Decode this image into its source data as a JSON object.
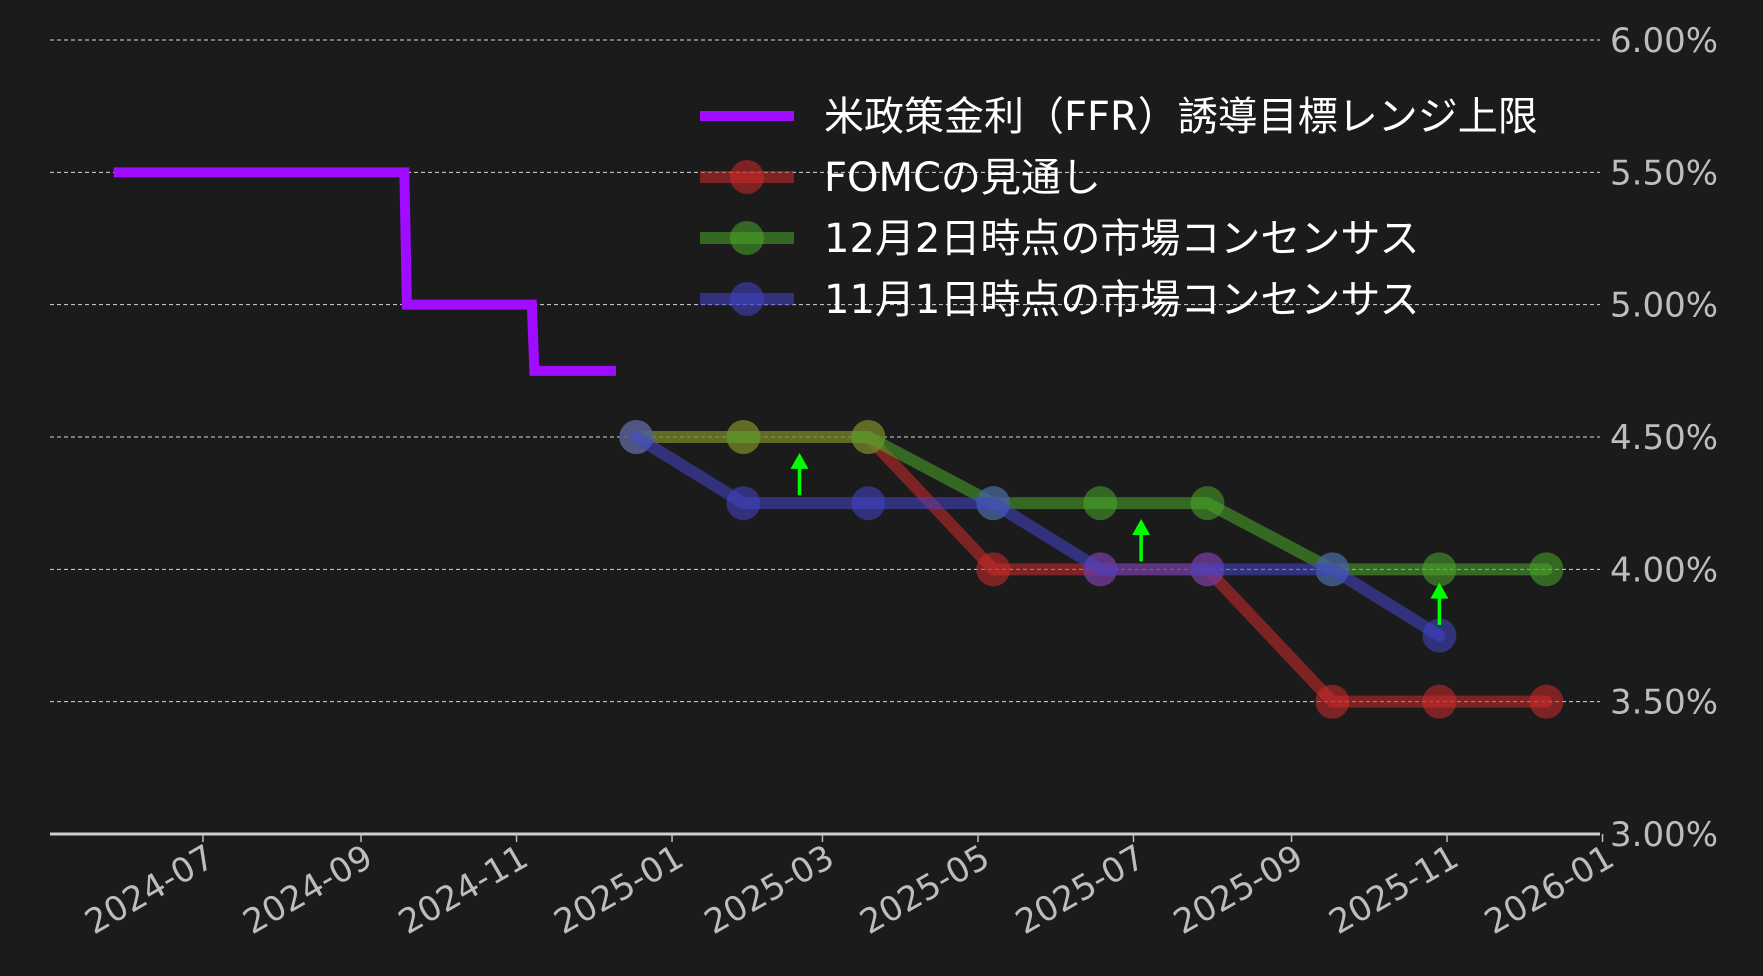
{
  "chart_data": {
    "type": "line",
    "title": "",
    "xlabel": "",
    "ylabel": "",
    "xlim": [
      "2024-05-02",
      "2025-12-31"
    ],
    "ylim": [
      3.0,
      6.0
    ],
    "grid": true,
    "legend_position": "top-right",
    "y_ticks": [
      {
        "value": 3.0,
        "label": "3.00%"
      },
      {
        "value": 3.5,
        "label": "3.50%"
      },
      {
        "value": 4.0,
        "label": "4.00%"
      },
      {
        "value": 4.5,
        "label": "4.50%"
      },
      {
        "value": 5.0,
        "label": "5.00%"
      },
      {
        "value": 5.5,
        "label": "5.50%"
      },
      {
        "value": 6.0,
        "label": "6.00%"
      }
    ],
    "x_ticks": [
      {
        "value": "2024-07-01",
        "label": "2024-07"
      },
      {
        "value": "2024-09-01",
        "label": "2024-09"
      },
      {
        "value": "2024-11-01",
        "label": "2024-11"
      },
      {
        "value": "2025-01-01",
        "label": "2025-01"
      },
      {
        "value": "2025-03-01",
        "label": "2025-03"
      },
      {
        "value": "2025-05-01",
        "label": "2025-05"
      },
      {
        "value": "2025-07-01",
        "label": "2025-07"
      },
      {
        "value": "2025-09-01",
        "label": "2025-09"
      },
      {
        "value": "2025-11-01",
        "label": "2025-11"
      },
      {
        "value": "2026-01-01",
        "label": "2026-01"
      }
    ],
    "series": [
      {
        "name": "米政策金利（FFR）誘導目標レンジ上限",
        "color": "#a00cff",
        "style": "step",
        "markers": false,
        "points": [
          {
            "x": "2024-05-27",
            "y": 5.5
          },
          {
            "x": "2024-09-18",
            "y": 5.5
          },
          {
            "x": "2024-09-19",
            "y": 5.0
          },
          {
            "x": "2024-11-07",
            "y": 5.0
          },
          {
            "x": "2024-11-08",
            "y": 4.75
          },
          {
            "x": "2024-12-10",
            "y": 4.75
          }
        ]
      },
      {
        "name": "FOMCの見通し",
        "color": "#d02a2a",
        "style": "line",
        "markers": true,
        "points": [
          {
            "x": "2024-12-18",
            "y": 4.5
          },
          {
            "x": "2025-01-29",
            "y": 4.5
          },
          {
            "x": "2025-03-19",
            "y": 4.5
          },
          {
            "x": "2025-05-07",
            "y": 4.0
          },
          {
            "x": "2025-06-18",
            "y": 4.0
          },
          {
            "x": "2025-07-30",
            "y": 4.0
          },
          {
            "x": "2025-09-17",
            "y": 3.5
          },
          {
            "x": "2025-10-29",
            "y": 3.5
          },
          {
            "x": "2025-12-10",
            "y": 3.5
          }
        ]
      },
      {
        "name": "12月2日時点の市場コンセンサス",
        "color": "#4aa829",
        "style": "line",
        "markers": true,
        "points": [
          {
            "x": "2024-12-18",
            "y": 4.5
          },
          {
            "x": "2025-01-29",
            "y": 4.5
          },
          {
            "x": "2025-03-19",
            "y": 4.5
          },
          {
            "x": "2025-05-07",
            "y": 4.25
          },
          {
            "x": "2025-06-18",
            "y": 4.25
          },
          {
            "x": "2025-07-30",
            "y": 4.25
          },
          {
            "x": "2025-09-17",
            "y": 4.0
          },
          {
            "x": "2025-10-29",
            "y": 4.0
          },
          {
            "x": "2025-12-10",
            "y": 4.0
          }
        ]
      },
      {
        "name": "11月1日時点の市場コンセンサス",
        "color": "#4444cc",
        "style": "line",
        "markers": true,
        "points": [
          {
            "x": "2024-12-18",
            "y": 4.5
          },
          {
            "x": "2025-01-29",
            "y": 4.25
          },
          {
            "x": "2025-03-19",
            "y": 4.25
          },
          {
            "x": "2025-05-07",
            "y": 4.25
          },
          {
            "x": "2025-06-18",
            "y": 4.0
          },
          {
            "x": "2025-07-30",
            "y": 4.0
          },
          {
            "x": "2025-09-17",
            "y": 4.0
          },
          {
            "x": "2025-10-29",
            "y": 3.75
          }
        ]
      }
    ],
    "annotations": [
      {
        "type": "arrow",
        "color": "#00ff00",
        "x": "2025-02-20",
        "y_from": 4.28,
        "y_to": 4.44
      },
      {
        "type": "arrow",
        "color": "#00ff00",
        "x": "2025-07-04",
        "y_from": 4.03,
        "y_to": 4.19
      },
      {
        "type": "arrow",
        "color": "#00ff00",
        "x": "2025-10-29",
        "y_from": 3.79,
        "y_to": 3.95
      }
    ]
  }
}
